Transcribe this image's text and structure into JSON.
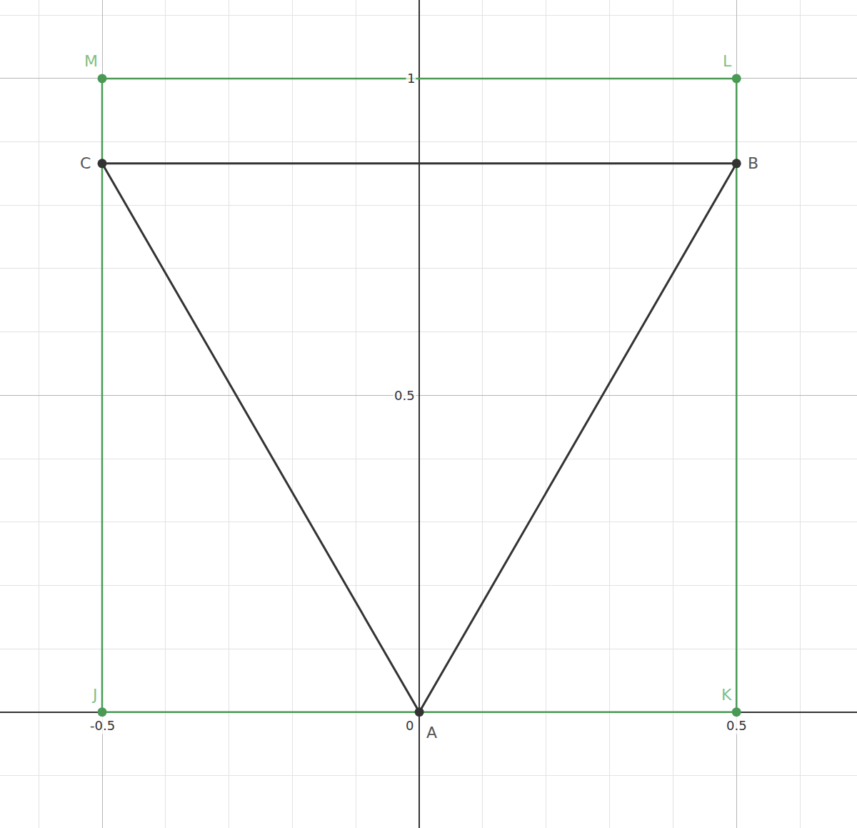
{
  "chart_data": {
    "type": "scatter",
    "xlim": [
      -0.661,
      0.69
    ],
    "ylim": [
      -0.183,
      1.124
    ],
    "xticks": [
      -0.5,
      0,
      0.5
    ],
    "yticks": [
      0.5,
      1
    ],
    "grid": true,
    "series": [
      {
        "color": "#4a9a55",
        "marker": "circle",
        "line_style": "solid",
        "x": [
          -0.5,
          0.5,
          0.5,
          -0.5
        ],
        "y": [
          0,
          0,
          1,
          1
        ],
        "labels": [
          "J",
          "K",
          "L",
          "M"
        ]
      },
      {
        "color": "#333333",
        "marker": "circle",
        "line_style": "solid",
        "x": [
          0,
          0.5,
          -0.5
        ],
        "y": [
          0,
          0.866,
          0.866
        ],
        "labels": [
          "A",
          "B",
          "C"
        ]
      }
    ]
  }
}
